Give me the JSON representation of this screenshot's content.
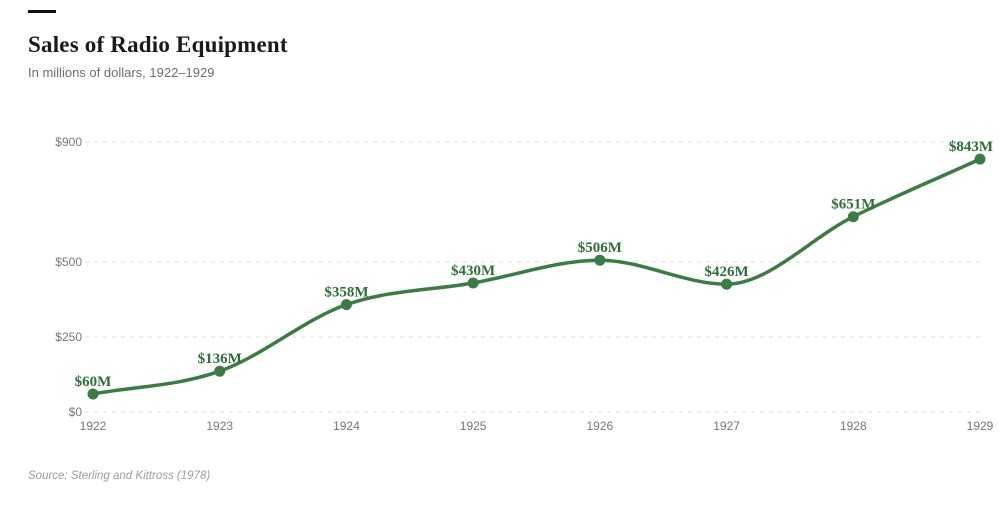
{
  "header": {
    "title": "Sales of Radio Equipment",
    "subtitle": "In millions of dollars, 1922–1929"
  },
  "footer": {
    "source": "Source: Sterling and Kittross (1978)"
  },
  "chart_data": {
    "type": "line",
    "title": "Sales of Radio Equipment",
    "subtitle": "In millions of dollars, 1922–1929",
    "categories": [
      "1922",
      "1923",
      "1924",
      "1925",
      "1926",
      "1927",
      "1928",
      "1929"
    ],
    "values": [
      60,
      136,
      358,
      430,
      506,
      426,
      651,
      843
    ],
    "point_labels": [
      "$60M",
      "$136M",
      "$358M",
      "$430M",
      "$506M",
      "$426M",
      "$651M",
      "$843M"
    ],
    "xlabel": "",
    "ylabel": "",
    "ylim": [
      0,
      900
    ],
    "y_ticks": [
      0,
      250,
      500,
      900
    ],
    "y_tick_labels": [
      "$0",
      "$250",
      "$500",
      "$900"
    ],
    "grid": "dashed horizontal gridlines",
    "legend": "none",
    "line_color": "#3a7d44",
    "point_color": "#3a7d44",
    "point_label_color": "#2e6f38",
    "grid_color": "#dedede",
    "tick_color": "#767676"
  }
}
